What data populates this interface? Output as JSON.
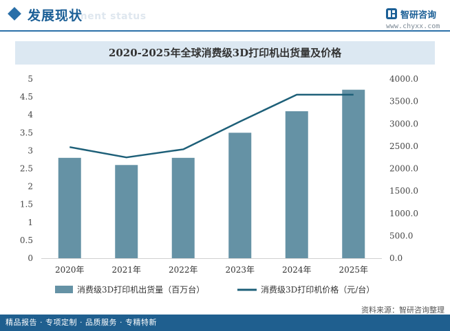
{
  "header": {
    "title": "发展现状",
    "watermark": "ment status"
  },
  "logo": {
    "name": "智研咨询",
    "url": "www.chyxx.com"
  },
  "chart_data": {
    "type": "bar",
    "title": "2020-2025年全球消费级3D打印机出货量及价格",
    "categories": [
      "2020年",
      "2021年",
      "2022年",
      "2023年",
      "2024年",
      "2025年"
    ],
    "series": [
      {
        "name": "消费级3D打印机出货量（百万台）",
        "type": "bar",
        "axis": "left",
        "values": [
          2.8,
          2.6,
          2.8,
          3.5,
          4.1,
          4.7
        ],
        "color": "#6592a5"
      },
      {
        "name": "消费级3D打印机价格（元/台）",
        "type": "line",
        "axis": "right",
        "values": [
          2480,
          2250,
          2430,
          3050,
          3650,
          3650
        ],
        "color": "#1d5f78"
      }
    ],
    "y_left": {
      "min": 0,
      "max": 5,
      "ticks": [
        "0",
        "0.5",
        "1",
        "1.5",
        "2",
        "2.5",
        "3",
        "3.5",
        "4",
        "4.5",
        "5"
      ]
    },
    "y_right": {
      "min": 0,
      "max": 4000,
      "ticks": [
        "0.0",
        "500.0",
        "1000.0",
        "1500.0",
        "2000.0",
        "2500.0",
        "3000.0",
        "3500.0",
        "4000.0"
      ]
    },
    "legend": "bottom",
    "grid": false
  },
  "source": "资料来源：智研咨询整理",
  "footer": "精品报告 · 专项定制 · 品质服务 · 专精特新"
}
